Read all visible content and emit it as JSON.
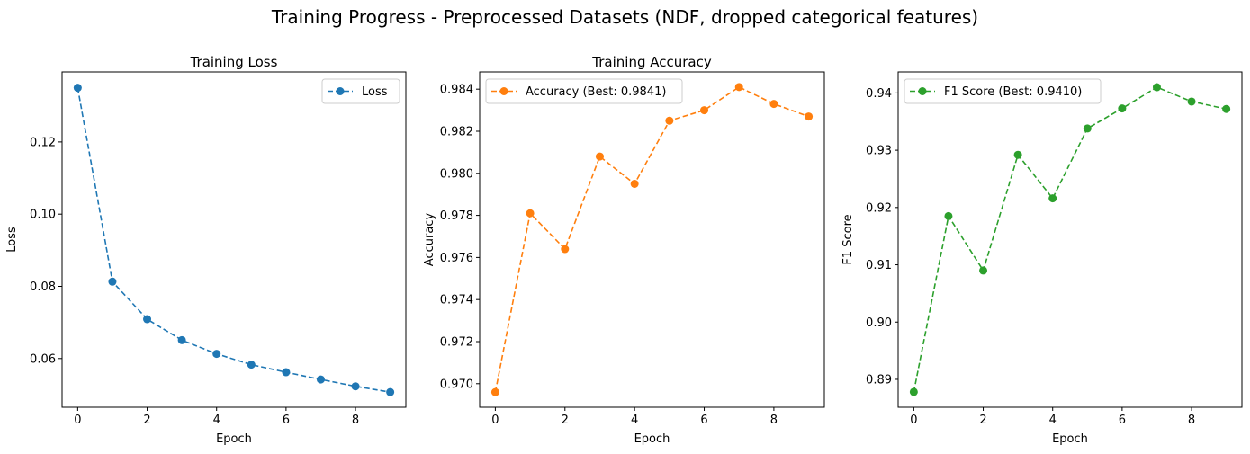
{
  "figure": {
    "title": "Training Progress - Preprocessed Datasets (NDF, dropped categorical features)"
  },
  "chart_data": [
    {
      "type": "line",
      "title": "Training Loss",
      "xlabel": "Epoch",
      "ylabel": "Loss",
      "x": [
        0,
        1,
        2,
        3,
        4,
        5,
        6,
        7,
        8,
        9
      ],
      "series": [
        {
          "name": "Loss",
          "color": "#1f77b4",
          "values": [
            0.135,
            0.0813,
            0.0709,
            0.0651,
            0.0613,
            0.0583,
            0.0562,
            0.0542,
            0.0523,
            0.0507
          ]
        }
      ],
      "xlim": [
        -0.45,
        9.45
      ],
      "ylim": [
        0.0465,
        0.1394
      ],
      "xticks": [
        0,
        2,
        4,
        6,
        8
      ],
      "xtick_labels": [
        "0",
        "2",
        "4",
        "6",
        "8"
      ],
      "yticks": [
        0.06,
        0.08,
        0.1,
        0.12
      ],
      "ytick_labels": [
        "0.06",
        "0.08",
        "0.10",
        "0.12"
      ],
      "line_style": "dashed",
      "marker": "circle",
      "legend_position": "top-right",
      "grid": false
    },
    {
      "type": "line",
      "title": "Training Accuracy",
      "xlabel": "Epoch",
      "ylabel": "Accuracy",
      "x": [
        0,
        1,
        2,
        3,
        4,
        5,
        6,
        7,
        8,
        9
      ],
      "series": [
        {
          "name": "Accuracy (Best: 0.9841)",
          "color": "#ff7f0e",
          "values": [
            0.9696,
            0.9781,
            0.9764,
            0.9808,
            0.9795,
            0.9825,
            0.983,
            0.9841,
            0.9833,
            0.9827
          ]
        }
      ],
      "xlim": [
        -0.45,
        9.45
      ],
      "ylim": [
        0.96888,
        0.98482
      ],
      "xticks": [
        0,
        2,
        4,
        6,
        8
      ],
      "xtick_labels": [
        "0",
        "2",
        "4",
        "6",
        "8"
      ],
      "yticks": [
        0.97,
        0.972,
        0.974,
        0.976,
        0.978,
        0.98,
        0.982,
        0.984
      ],
      "ytick_labels": [
        "0.970",
        "0.972",
        "0.974",
        "0.976",
        "0.978",
        "0.980",
        "0.982",
        "0.984"
      ],
      "line_style": "dashed",
      "marker": "circle",
      "legend_position": "top-left",
      "grid": false
    },
    {
      "type": "line",
      "title": "",
      "xlabel": "Epoch",
      "ylabel": "F1 Score",
      "x": [
        0,
        1,
        2,
        3,
        4,
        5,
        6,
        7,
        8,
        9
      ],
      "series": [
        {
          "name": "F1 Score (Best: 0.9410)",
          "color": "#2ca02c",
          "values": [
            0.8878,
            0.9185,
            0.909,
            0.9292,
            0.9216,
            0.9338,
            0.9373,
            0.941,
            0.9385,
            0.9372
          ]
        }
      ],
      "xlim": [
        -0.45,
        9.45
      ],
      "ylim": [
        0.88513,
        0.94367
      ],
      "xticks": [
        0,
        2,
        4,
        6,
        8
      ],
      "xtick_labels": [
        "0",
        "2",
        "4",
        "6",
        "8"
      ],
      "yticks": [
        0.89,
        0.9,
        0.91,
        0.92,
        0.93,
        0.94
      ],
      "ytick_labels": [
        "0.89",
        "0.90",
        "0.91",
        "0.92",
        "0.93",
        "0.94"
      ],
      "line_style": "dashed",
      "marker": "circle",
      "legend_position": "top-left",
      "grid": false
    }
  ]
}
